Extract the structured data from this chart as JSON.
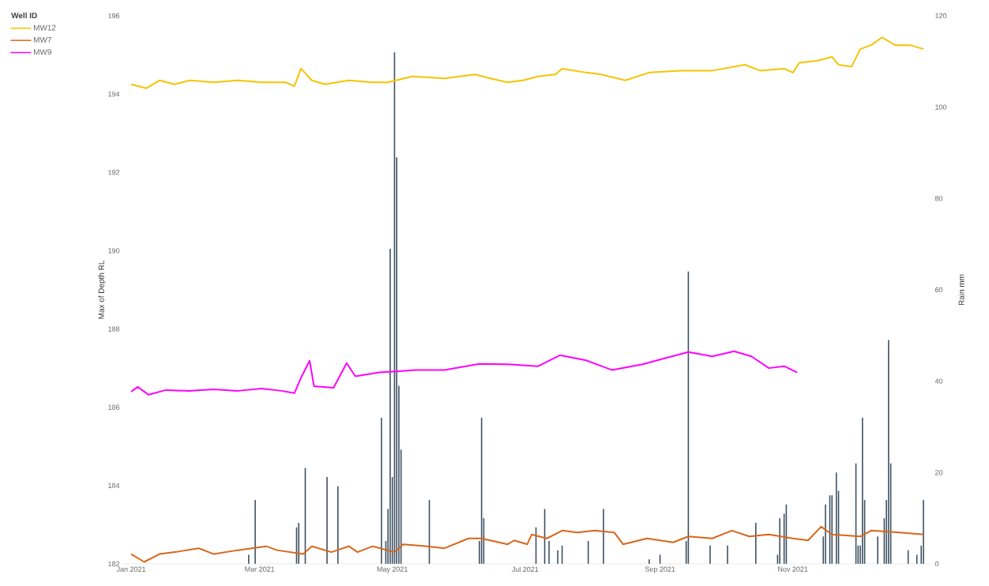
{
  "chart_data": {
    "type": "line",
    "ylabel": "Max of Depth RL",
    "y2label": "Rain mm",
    "legend_title": "Well ID",
    "legend": "top left",
    "xlim": [
      "2020-12-28",
      "2022-01-04"
    ],
    "xticks": [
      {
        "value": "2021-01-01",
        "label": "Jan 2021"
      },
      {
        "value": "2021-03-01",
        "label": "Mar 2021"
      },
      {
        "value": "2021-05-01",
        "label": "May 2021"
      },
      {
        "value": "2021-07-01",
        "label": "Jul 2021"
      },
      {
        "value": "2021-09-01",
        "label": "Sep 2021"
      },
      {
        "value": "2021-11-01",
        "label": "Nov 2021"
      }
    ],
    "ylim": [
      182,
      196
    ],
    "yticks": [
      182,
      184,
      186,
      188,
      190,
      192,
      194,
      196
    ],
    "y2lim": [
      0,
      120
    ],
    "y2ticks": [
      0,
      20,
      40,
      60,
      80,
      100,
      120
    ],
    "series": [
      {
        "type": "bar",
        "axis": "y2",
        "color": "#3d5263",
        "x": [
          "2021-02-24",
          "2021-02-27",
          "2021-03-17",
          "2021-03-18",
          "2021-03-19",
          "2021-03-22",
          "2021-04-01",
          "2021-04-06",
          "2021-04-26",
          "2021-04-28",
          "2021-04-29",
          "2021-04-30",
          "2021-05-01",
          "2021-05-02",
          "2021-05-03",
          "2021-05-04",
          "2021-05-05",
          "2021-05-18",
          "2021-06-10",
          "2021-06-11",
          "2021-06-12",
          "2021-07-06",
          "2021-07-10",
          "2021-07-12",
          "2021-07-16",
          "2021-07-18",
          "2021-07-30",
          "2021-08-06",
          "2021-08-27",
          "2021-09-01",
          "2021-09-13",
          "2021-09-14",
          "2021-09-24",
          "2021-10-02",
          "2021-10-15",
          "2021-10-25",
          "2021-10-26",
          "2021-10-28",
          "2021-10-29",
          "2021-11-15",
          "2021-11-16",
          "2021-11-18",
          "2021-11-19",
          "2021-11-21",
          "2021-11-22",
          "2021-11-30",
          "2021-12-01",
          "2021-12-02",
          "2021-12-03",
          "2021-12-04",
          "2021-12-10",
          "2021-12-13",
          "2021-12-14",
          "2021-12-15",
          "2021-12-16",
          "2021-12-24",
          "2021-12-28",
          "2021-12-30",
          "2021-12-31"
        ],
        "values": [
          2,
          14,
          null,
          8,
          9,
          21,
          19,
          17,
          32,
          5,
          12,
          69,
          19,
          112,
          89,
          39,
          25,
          14,
          5,
          32,
          10,
          8,
          12,
          5,
          3,
          4,
          5,
          12,
          1,
          2,
          5,
          64,
          4,
          4,
          9,
          2,
          10,
          11,
          13,
          6,
          13,
          15,
          15,
          20,
          16,
          22,
          4,
          4,
          32,
          14,
          6,
          10,
          14,
          49,
          22,
          3,
          2,
          4,
          14
        ]
      },
      {
        "name": "MW12",
        "color": "#f5c400",
        "x": [
          "2021-01-01",
          "2021-01-08",
          "2021-01-14",
          "2021-01-21",
          "2021-01-28",
          "2021-02-08",
          "2021-02-19",
          "2021-03-02",
          "2021-03-13",
          "2021-03-17",
          "2021-03-20",
          "2021-03-25",
          "2021-03-31",
          "2021-04-11",
          "2021-04-22",
          "2021-04-29",
          "2021-05-10",
          "2021-05-25",
          "2021-06-08",
          "2021-06-15",
          "2021-06-23",
          "2021-06-30",
          "2021-07-07",
          "2021-07-15",
          "2021-07-18",
          "2021-07-29",
          "2021-08-05",
          "2021-08-16",
          "2021-08-27",
          "2021-09-11",
          "2021-09-25",
          "2021-10-10",
          "2021-10-17",
          "2021-10-28",
          "2021-11-01",
          "2021-11-04",
          "2021-11-12",
          "2021-11-19",
          "2021-11-22",
          "2021-11-28",
          "2021-12-02",
          "2021-12-07",
          "2021-12-12",
          "2021-12-18",
          "2021-12-25",
          "2021-12-31"
        ],
        "values": [
          194.25,
          194.15,
          194.35,
          194.25,
          194.35,
          194.3,
          194.35,
          194.3,
          194.3,
          194.2,
          194.65,
          194.35,
          194.25,
          194.35,
          194.3,
          194.3,
          194.45,
          194.4,
          194.5,
          194.4,
          194.3,
          194.35,
          194.45,
          194.5,
          194.65,
          194.55,
          194.5,
          194.35,
          194.55,
          194.6,
          194.6,
          194.75,
          194.6,
          194.65,
          194.55,
          194.8,
          194.85,
          194.95,
          194.75,
          194.7,
          195.15,
          195.25,
          195.45,
          195.25,
          195.25,
          195.15
        ]
      },
      {
        "name": "MW7",
        "color": "#d9661a",
        "x": [
          "2021-01-01",
          "2021-01-07",
          "2021-01-14",
          "2021-01-21",
          "2021-02-01",
          "2021-02-08",
          "2021-02-19",
          "2021-03-04",
          "2021-03-09",
          "2021-03-21",
          "2021-03-25",
          "2021-04-03",
          "2021-04-11",
          "2021-04-15",
          "2021-04-22",
          "2021-05-02",
          "2021-05-06",
          "2021-05-17",
          "2021-05-25",
          "2021-06-05",
          "2021-06-11",
          "2021-06-23",
          "2021-06-26",
          "2021-07-02",
          "2021-07-04",
          "2021-07-11",
          "2021-07-18",
          "2021-07-25",
          "2021-08-02",
          "2021-08-11",
          "2021-08-15",
          "2021-08-26",
          "2021-09-07",
          "2021-09-14",
          "2021-09-25",
          "2021-10-04",
          "2021-10-12",
          "2021-10-21",
          "2021-11-01",
          "2021-11-08",
          "2021-11-14",
          "2021-11-19",
          "2021-12-02",
          "2021-12-07",
          "2021-12-20",
          "2021-12-31"
        ],
        "values": [
          182.25,
          182.05,
          182.25,
          182.3,
          182.4,
          182.25,
          182.35,
          182.45,
          182.35,
          182.25,
          182.45,
          182.3,
          182.45,
          182.3,
          182.45,
          182.3,
          182.5,
          182.45,
          182.4,
          182.65,
          182.65,
          182.5,
          182.6,
          182.5,
          182.75,
          182.65,
          182.85,
          182.8,
          182.85,
          182.8,
          182.5,
          182.65,
          182.55,
          182.7,
          182.65,
          182.85,
          182.7,
          182.75,
          182.65,
          182.6,
          182.95,
          182.75,
          182.7,
          182.85,
          182.8,
          182.75
        ]
      },
      {
        "name": "MW9",
        "color": "#ff00ff",
        "x": [
          "2021-01-01",
          "2021-01-04",
          "2021-01-09",
          "2021-01-17",
          "2021-01-28",
          "2021-02-08",
          "2021-02-19",
          "2021-03-02",
          "2021-03-11",
          "2021-03-17",
          "2021-03-20",
          "2021-03-24",
          "2021-03-26",
          "2021-04-04",
          "2021-04-10",
          "2021-04-14",
          "2021-04-25",
          "2021-05-12",
          "2021-05-25",
          "2021-06-10",
          "2021-06-23",
          "2021-07-07",
          "2021-07-17",
          "2021-07-29",
          "2021-08-10",
          "2021-08-24",
          "2021-09-03",
          "2021-09-14",
          "2021-09-25",
          "2021-10-05",
          "2021-10-13",
          "2021-10-21",
          "2021-10-28",
          "2021-11-03"
        ],
        "values": [
          186.4,
          186.52,
          186.32,
          186.44,
          186.42,
          186.46,
          186.42,
          186.48,
          186.42,
          186.36,
          186.75,
          187.19,
          186.54,
          186.5,
          187.13,
          186.79,
          186.89,
          186.95,
          186.95,
          187.11,
          187.1,
          187.05,
          187.33,
          187.2,
          186.95,
          187.1,
          187.25,
          187.41,
          187.3,
          187.43,
          187.3,
          187.0,
          187.05,
          186.89
        ]
      }
    ]
  }
}
